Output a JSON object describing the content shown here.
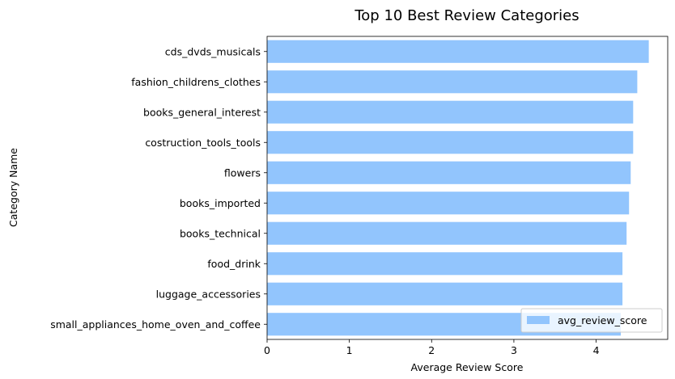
{
  "chart_data": {
    "type": "bar",
    "orientation": "horizontal",
    "title": "Top 10 Best Review Categories",
    "xlabel": "Average Review Score",
    "ylabel": "Category Name",
    "xlim": [
      0,
      4.87
    ],
    "xticks": [
      "0",
      "1",
      "2",
      "3",
      "4"
    ],
    "categories": [
      "cds_dvds_musicals",
      "fashion_childrens_clothes",
      "books_general_interest",
      "costruction_tools_tools",
      "flowers",
      "books_imported",
      "books_technical",
      "food_drink",
      "luggage_accessories",
      "small_appliances_home_oven_and_coffee"
    ],
    "series": [
      {
        "name": "avg_review_score",
        "color": "#92c5fd",
        "values": [
          4.64,
          4.5,
          4.45,
          4.45,
          4.42,
          4.4,
          4.37,
          4.32,
          4.32,
          4.3
        ]
      }
    ],
    "legend": {
      "position": "bottom-right",
      "entries": [
        "avg_review_score"
      ]
    },
    "grid": false
  }
}
